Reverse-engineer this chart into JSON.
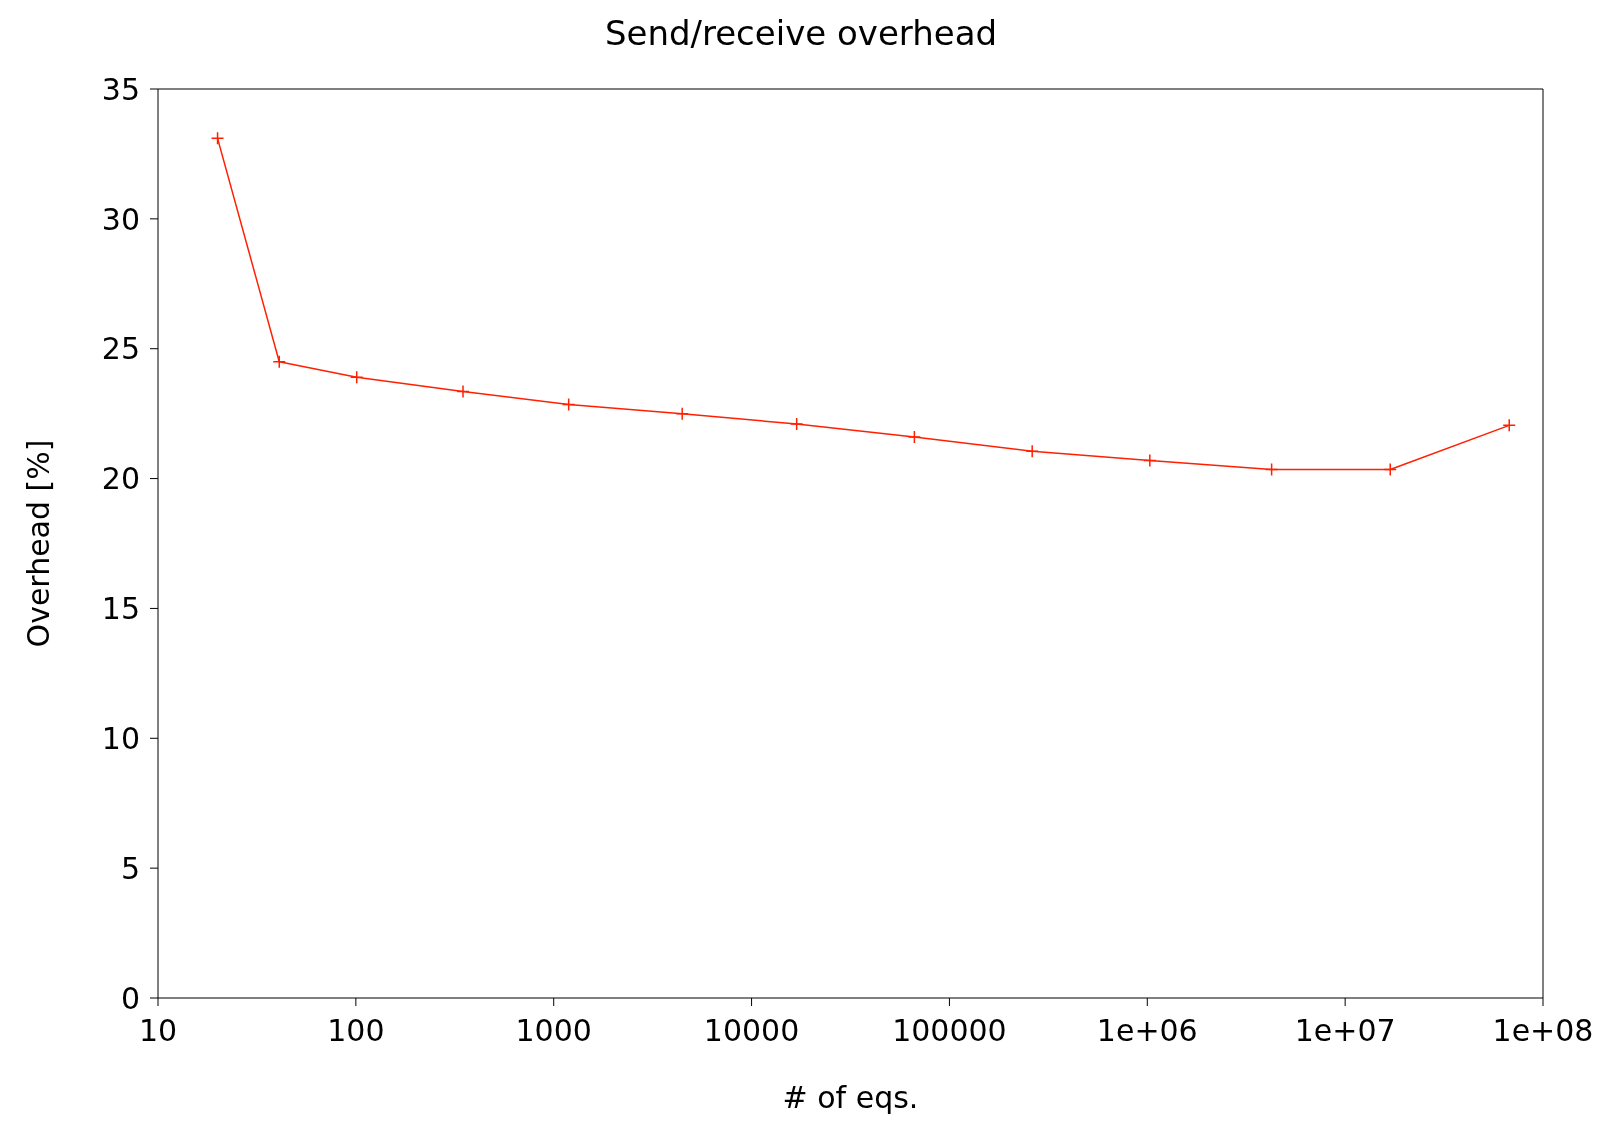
{
  "chart_data": {
    "type": "line",
    "title": "Send/receive overhead",
    "xlabel": "# of eqs.",
    "ylabel": "Overhead [%]",
    "log": "x",
    "x": [
      20,
      41,
      101,
      348,
      1190,
      4460,
      16900,
      66500,
      262000,
      1030000,
      4250000,
      16900000,
      67500000
    ],
    "series": [
      {
        "color": "#ff2000",
        "values": [
          33.1,
          24.5,
          23.9,
          23.35,
          22.85,
          22.5,
          22.1,
          21.6,
          21.05,
          20.7,
          20.35,
          20.35,
          22.05
        ]
      }
    ],
    "xlim": [
      10,
      100000000
    ],
    "xticks": [
      10,
      100,
      1000,
      10000,
      100000,
      {
        "value": 1000000,
        "label": "1e+06"
      },
      {
        "value": 10000000,
        "label": "1e+07"
      },
      {
        "value": 100000000,
        "label": "1e+08"
      }
    ],
    "ylim": [
      0,
      35
    ],
    "yticks": [
      0,
      5,
      10,
      15,
      20,
      25,
      30,
      35
    ],
    "grid": false,
    "legend": false,
    "marker": "cross",
    "line_style": "solid"
  }
}
